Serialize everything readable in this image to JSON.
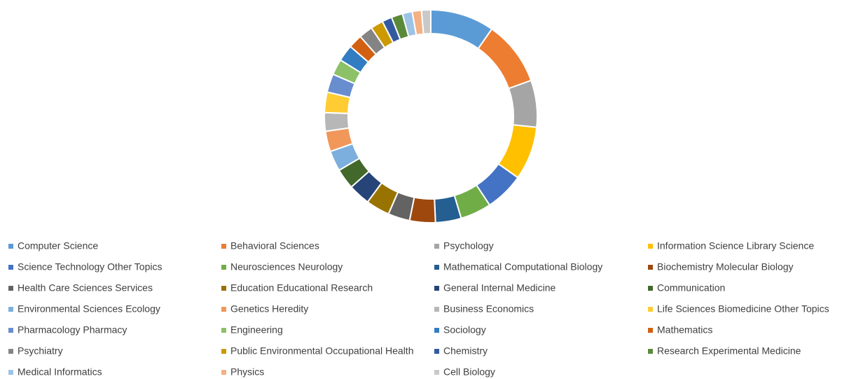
{
  "chart_data": {
    "type": "donut",
    "categories": [
      "Computer Science",
      "Behavioral Sciences",
      "Psychology",
      "Information Science Library Science",
      "Science Technology Other Topics",
      "Neurosciences Neurology",
      "Mathematical Computational Biology",
      "Biochemistry Molecular Biology",
      "Health Care Sciences Services",
      "Education Educational Research",
      "General Internal Medicine",
      "Communication",
      "Environmental Sciences Ecology",
      "Genetics Heredity",
      "Business Economics",
      "Life Sciences Biomedicine Other Topics",
      "Pharmacology Pharmacy",
      "Engineering",
      "Sociology",
      "Mathematics",
      "Psychiatry",
      "Public Environmental Occupational Health",
      "Chemistry",
      "Research Experimental Medicine",
      "Medical Informatics",
      "Physics",
      "Cell Biology"
    ],
    "values": [
      9.7,
      9.8,
      7.1,
      8.1,
      5.9,
      4.7,
      3.9,
      3.9,
      3.3,
      3.6,
      3.3,
      3.1,
      3.1,
      3.1,
      2.8,
      3.1,
      2.8,
      2.4,
      2.5,
      2.1,
      2.1,
      1.9,
      1.5,
      1.7,
      1.5,
      1.4,
      1.4
    ],
    "colors": [
      "#5B9BD5",
      "#ED7D31",
      "#A5A5A5",
      "#FFC000",
      "#4472C4",
      "#70AD47",
      "#255E91",
      "#9E480E",
      "#636363",
      "#997300",
      "#264478",
      "#43682B",
      "#7CAFDD",
      "#F1975A",
      "#B7B7B7",
      "#FFCD33",
      "#698ED0",
      "#8CC168",
      "#327DC2",
      "#D26012",
      "#848484",
      "#CC9A00",
      "#335AA1",
      "#5A8A39",
      "#9DC3E6",
      "#F4B183",
      "#C9C9C9"
    ],
    "legend": "bottom"
  }
}
